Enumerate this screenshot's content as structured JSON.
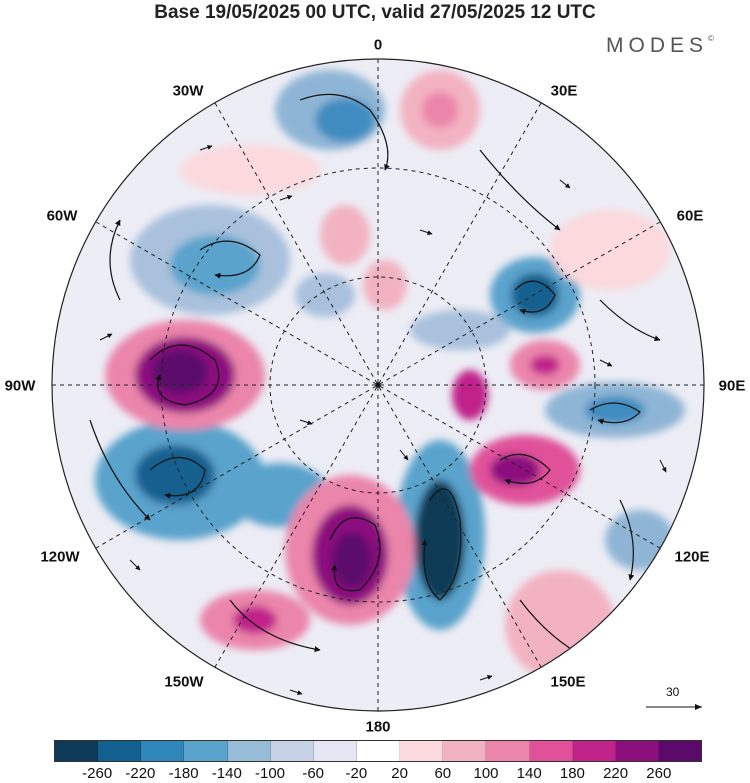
{
  "header": {
    "title": "Base 19/05/2025 00 UTC, valid 27/05/2025 12 UTC",
    "brand": "MODES",
    "brand_mark": "©"
  },
  "longitude_labels": {
    "top": "0",
    "top_right": "30E",
    "upper_right": "60E",
    "right": "90E",
    "lower_right": "120E",
    "bottom_right": "150E",
    "bottom": "180",
    "bottom_left": "150W",
    "lower_left": "120W",
    "left": "90W",
    "upper_left": "60W",
    "top_left": "30W"
  },
  "reference_vector": {
    "label": "30"
  },
  "colorbar": {
    "colors": [
      "#0d3b57",
      "#12608f",
      "#2f86b8",
      "#5aa3cc",
      "#97bcd8",
      "#c6d2e6",
      "#e6e6f2",
      "#ffffff",
      "#fbd9dd",
      "#f3b2c1",
      "#eb85aa",
      "#e0519a",
      "#c0238a",
      "#8c0f7e",
      "#5b0a6c"
    ],
    "tick_labels": [
      "-260",
      "-220",
      "-180",
      "-140",
      "-100",
      "-60",
      "-20",
      "20",
      "60",
      "100",
      "140",
      "180",
      "220",
      "260"
    ]
  }
}
